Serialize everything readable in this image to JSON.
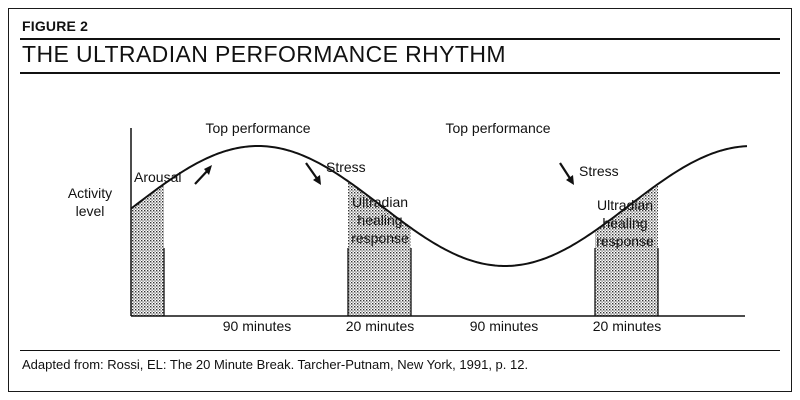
{
  "figure_label": "FIGURE 2",
  "title": "THE ULTRADIAN PERFORMANCE RHYTHM",
  "y_axis_label": [
    "Activity",
    "level"
  ],
  "peaks": [
    "Top performance",
    "Top performance"
  ],
  "arousal": "Arousal",
  "stress": [
    "Stress",
    "Stress"
  ],
  "healing": [
    [
      "Ultradian",
      "healing",
      "response"
    ],
    [
      "Ultradian",
      "healing",
      "response"
    ]
  ],
  "durations": [
    "90 minutes",
    "20 minutes",
    "90 minutes",
    "20 minutes"
  ],
  "caption": "Adapted from: Rossi, EL: The 20 Minute Break. Tarcher-Putnam, New York, 1991, p. 12."
}
